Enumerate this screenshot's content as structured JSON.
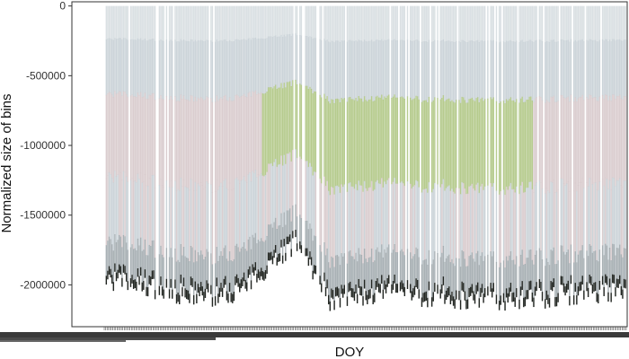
{
  "chart_data": {
    "type": "bar",
    "stacked": true,
    "title": "",
    "xlabel": "DOY",
    "ylabel": "Normalized size of bins",
    "ylim": [
      -2300000,
      30000
    ],
    "yticks": [
      {
        "value": 0,
        "label": "0"
      },
      {
        "value": -500000,
        "label": "-500000"
      },
      {
        "value": -1000000,
        "label": "-1000000"
      },
      {
        "value": -1500000,
        "label": "-1500000"
      },
      {
        "value": -2000000,
        "label": "-2000000"
      }
    ],
    "x_range": [
      1,
      365
    ],
    "x_tick_labels_legible": false,
    "grid": false,
    "legend": "none",
    "series_note_colors": {
      "top": "#d4dade",
      "upper": "#c3cdd2",
      "green_mid": "#a9c27a",
      "pink_mid": "#d3c4c7",
      "lower": "#9aa3a8",
      "bottom": "#222622"
    },
    "profile": {
      "doy": [
        1,
        20,
        40,
        60,
        80,
        100,
        120,
        135,
        150,
        160,
        170,
        185,
        200,
        220,
        240,
        260,
        280,
        300,
        320,
        340,
        365
      ],
      "min_value": [
        -1960000,
        -1990000,
        -2030000,
        -2080000,
        -2080000,
        -2020000,
        -1800000,
        -1720000,
        -1950000,
        -2150000,
        -2100000,
        -2080000,
        -2060000,
        -2080000,
        -2080000,
        -2120000,
        -2110000,
        -2100000,
        -2070000,
        -2060000,
        -2050000
      ]
    }
  }
}
